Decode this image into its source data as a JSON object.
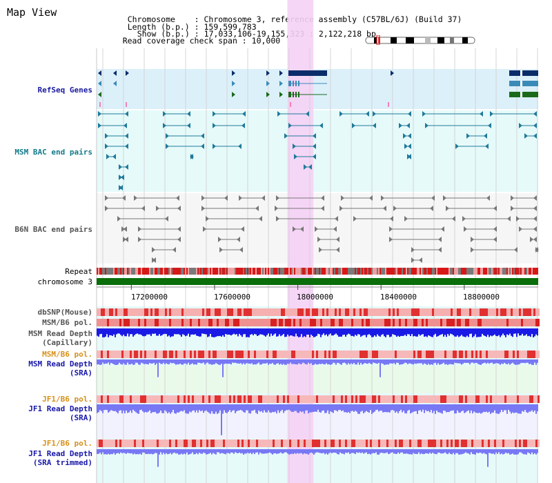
{
  "view_title": "Map View",
  "info": {
    "chromosome_key": "Chromosome",
    "chromosome_val": "Chromosome 3, reference assembly (C57BL/6J) (Build 37)",
    "length_key": "Length (b.p.)",
    "length_val": "159,599,783",
    "show_key": "Show (b.p.)",
    "show_val": "17,033,106-19,155,323 : 2,122,218 bp",
    "span_key": "Read coverage check span",
    "span_val": "10,000"
  },
  "tracks": {
    "refseq": "RefSeq Genes",
    "msm_bac": "MSM BAC end pairs",
    "b6n_bac": "B6N BAC end pairs",
    "repeat": "Repeat",
    "chromosome": "chromosome 3",
    "dbsnp": "dbSNP(Mouse)",
    "msm_b6_pol_1": "MSM/B6 pol.",
    "msm_depth_cap_1": "MSM Read Depth",
    "msm_depth_cap_2": "(Capillary)",
    "msm_b6_pol_2": "MSM/B6 pol.",
    "msm_depth_sra_1": "MSM Read Depth",
    "msm_depth_sra_2": "(SRA)",
    "jf1_b6_pol_1": "JF1/B6 pol.",
    "jf1_depth_sra_1": "JF1 Read Depth",
    "jf1_depth_sra_2": "(SRA)",
    "jf1_b6_pol_2": "JF1/B6 pol.",
    "jf1_depth_trim_1": "JF1 Read Depth",
    "jf1_depth_trim_2": "(SRA trimmed)"
  },
  "axis": {
    "ticks": [
      "17200000",
      "17600000",
      "18000000",
      "18400000",
      "18800000"
    ]
  },
  "highlight": {
    "start_bp": 17950000,
    "end_bp": 18075000
  },
  "colors": {
    "refseq_bg": "#dcf0fa",
    "track_bg": "#e6fafa",
    "highlight": "#f5d2f5",
    "gene_dark": "#0a2c6a",
    "gene_mid": "#3a8ab8",
    "gene_green": "#1a6a1a",
    "bac_teal": "#1f7a9a",
    "bac_gray": "#777777",
    "chrom_green": "#0a6e0a",
    "depth_blue": "#1a1ae6",
    "depth_light": "#7878f5"
  }
}
